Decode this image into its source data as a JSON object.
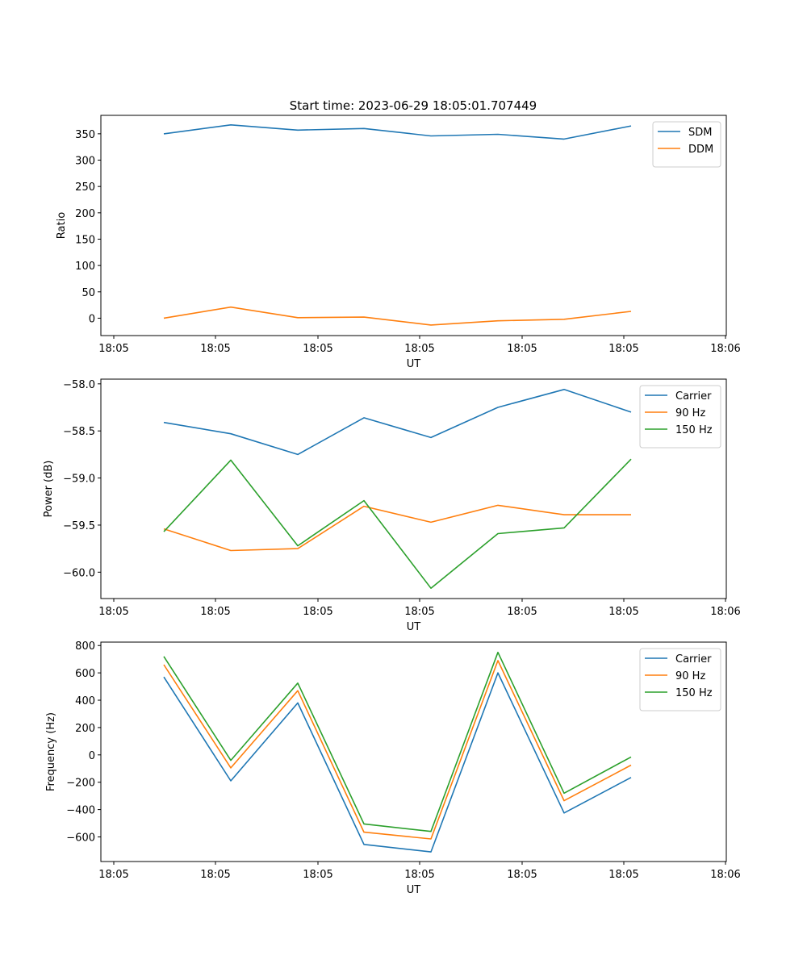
{
  "figure": {
    "title": "Start time: 2023-06-29 18:05:01.707449"
  },
  "chart_data": [
    {
      "type": "line",
      "title": "Start time: 2023-06-29 18:05:01.707449",
      "xlabel": "UT",
      "ylabel": "Ratio",
      "x_tick_labels": [
        "18:05",
        "18:05",
        "18:05",
        "18:05",
        "18:05",
        "18:05",
        "18:06"
      ],
      "y_ticks": [
        0,
        50,
        100,
        150,
        200,
        250,
        300,
        350
      ],
      "y_tick_labels": [
        "0",
        "50",
        "100",
        "150",
        "200",
        "250",
        "300",
        "350"
      ],
      "ylim": [
        -33,
        385
      ],
      "legend_position": "top-right",
      "grid": false,
      "series": [
        {
          "name": "SDM",
          "color": "#1f77b4",
          "values": [
            350,
            367,
            357,
            360,
            346,
            349,
            340,
            365
          ]
        },
        {
          "name": "DDM",
          "color": "#ff7f0e",
          "values": [
            0,
            21,
            1,
            2,
            -13,
            -5,
            -2,
            13
          ]
        }
      ]
    },
    {
      "type": "line",
      "xlabel": "UT",
      "ylabel": "Power (dB)",
      "x_tick_labels": [
        "18:05",
        "18:05",
        "18:05",
        "18:05",
        "18:05",
        "18:05",
        "18:06"
      ],
      "y_ticks": [
        -60.0,
        -59.5,
        -59.0,
        -58.5,
        -58.0
      ],
      "y_tick_labels": [
        "−60.0",
        "−59.5",
        "−59.0",
        "−58.5",
        "−58.0"
      ],
      "ylim": [
        -60.28,
        -57.95
      ],
      "legend_position": "top-right",
      "grid": false,
      "series": [
        {
          "name": "Carrier",
          "color": "#1f77b4",
          "values": [
            -58.41,
            -58.53,
            -58.75,
            -58.36,
            -58.57,
            -58.25,
            -58.06,
            -58.3
          ]
        },
        {
          "name": "90 Hz",
          "color": "#ff7f0e",
          "values": [
            -59.54,
            -59.77,
            -59.75,
            -59.3,
            -59.47,
            -59.29,
            -59.39,
            -59.39
          ]
        },
        {
          "name": "150 Hz",
          "color": "#2ca02c",
          "values": [
            -59.57,
            -58.81,
            -59.72,
            -59.24,
            -60.17,
            -59.59,
            -59.53,
            -58.8
          ]
        }
      ]
    },
    {
      "type": "line",
      "xlabel": "UT",
      "ylabel": "Frequency (Hz)",
      "x_tick_labels": [
        "18:05",
        "18:05",
        "18:05",
        "18:05",
        "18:05",
        "18:05",
        "18:06"
      ],
      "y_ticks": [
        -600,
        -400,
        -200,
        0,
        200,
        400,
        600,
        800
      ],
      "y_tick_labels": [
        "−600",
        "−400",
        "−200",
        "0",
        "200",
        "400",
        "600",
        "800"
      ],
      "ylim": [
        -780,
        825
      ],
      "legend_position": "top-right",
      "grid": false,
      "series": [
        {
          "name": "Carrier",
          "color": "#1f77b4",
          "values": [
            570,
            -190,
            380,
            -655,
            -710,
            600,
            -425,
            -165
          ]
        },
        {
          "name": "90 Hz",
          "color": "#ff7f0e",
          "values": [
            660,
            -95,
            470,
            -565,
            -615,
            690,
            -335,
            -75
          ]
        },
        {
          "name": "150 Hz",
          "color": "#2ca02c",
          "values": [
            720,
            -40,
            525,
            -505,
            -560,
            750,
            -280,
            -15
          ]
        }
      ]
    }
  ]
}
